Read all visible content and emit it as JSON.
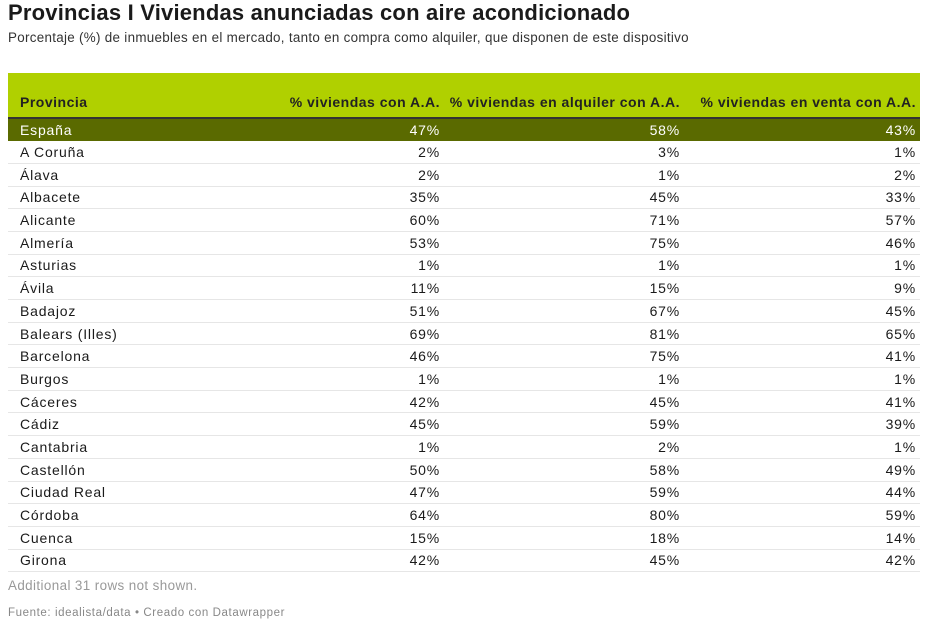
{
  "title": "Provincias I Viviendas anunciadas con aire acondicionado",
  "subtitle": "Porcentaje (%) de inmuebles en el mercado, tanto en compra como alquiler, que disponen de este dispositivo",
  "footer_note": "Additional 31 rows not shown.",
  "source": "Fuente: idealista/data • Creado con Datawrapper",
  "colors": {
    "header_bg": "#b0d000",
    "highlight_row_bg": "#5a6a00"
  },
  "chart_data": {
    "type": "table",
    "columns": [
      "Provincia",
      "% viviendas con A.A.",
      "% viviendas en alquiler con A.A.",
      "% viviendas en venta con A.A."
    ],
    "rows": [
      [
        "España",
        "47%",
        "58%",
        "43%"
      ],
      [
        "A Coruña",
        "2%",
        "3%",
        "1%"
      ],
      [
        "Álava",
        "2%",
        "1%",
        "2%"
      ],
      [
        "Albacete",
        "35%",
        "45%",
        "33%"
      ],
      [
        "Alicante",
        "60%",
        "71%",
        "57%"
      ],
      [
        "Almería",
        "53%",
        "75%",
        "46%"
      ],
      [
        "Asturias",
        "1%",
        "1%",
        "1%"
      ],
      [
        "Ávila",
        "11%",
        "15%",
        "9%"
      ],
      [
        "Badajoz",
        "51%",
        "67%",
        "45%"
      ],
      [
        "Balears (Illes)",
        "69%",
        "81%",
        "65%"
      ],
      [
        "Barcelona",
        "46%",
        "75%",
        "41%"
      ],
      [
        "Burgos",
        "1%",
        "1%",
        "1%"
      ],
      [
        "Cáceres",
        "42%",
        "45%",
        "41%"
      ],
      [
        "Cádiz",
        "45%",
        "59%",
        "39%"
      ],
      [
        "Cantabria",
        "1%",
        "2%",
        "1%"
      ],
      [
        "Castellón",
        "50%",
        "58%",
        "49%"
      ],
      [
        "Ciudad Real",
        "47%",
        "59%",
        "44%"
      ],
      [
        "Córdoba",
        "64%",
        "80%",
        "59%"
      ],
      [
        "Cuenca",
        "15%",
        "18%",
        "14%"
      ],
      [
        "Girona",
        "42%",
        "45%",
        "42%"
      ]
    ],
    "highlighted_row": "España"
  }
}
